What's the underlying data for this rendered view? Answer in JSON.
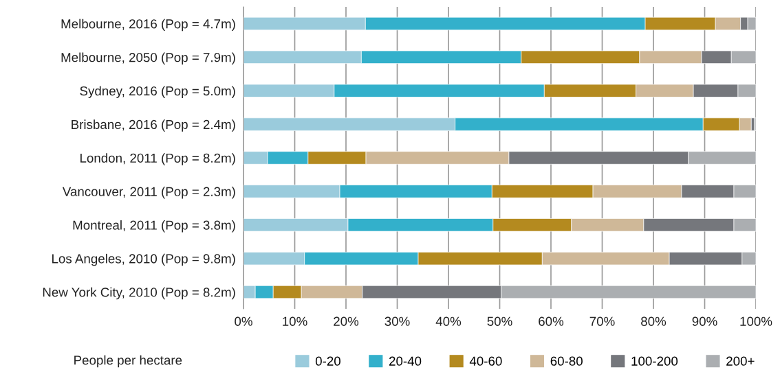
{
  "chart_data": {
    "type": "bar",
    "orientation": "horizontal",
    "stacked": true,
    "categories": [
      "Melbourne, 2016 (Pop = 4.7m)",
      "Melbourne, 2050 (Pop = 7.9m)",
      "Sydney, 2016 (Pop = 5.0m)",
      "Brisbane, 2016 (Pop = 2.4m)",
      "London, 2011 (Pop = 8.2m)",
      "Vancouver, 2011 (Pop = 2.3m)",
      "Montreal, 2011 (Pop = 3.8m)",
      "Los Angeles, 2010 (Pop = 9.8m)",
      "New York City, 2010 (Pop = 8.2m)"
    ],
    "series": [
      {
        "name": "0-20",
        "color": "#9acbdc",
        "values": [
          23.8,
          23.0,
          17.7,
          41.3,
          4.7,
          18.8,
          20.4,
          11.9,
          2.3
        ]
      },
      {
        "name": "20-40",
        "color": "#33b0cb",
        "values": [
          54.6,
          31.2,
          41.0,
          48.4,
          7.9,
          29.7,
          28.3,
          22.2,
          3.5
        ]
      },
      {
        "name": "40-60",
        "color": "#b48a1f",
        "values": [
          13.7,
          23.1,
          17.9,
          7.1,
          11.3,
          19.7,
          15.3,
          24.2,
          5.5
        ]
      },
      {
        "name": "60-80",
        "color": "#cfb898",
        "values": [
          4.9,
          12.1,
          11.2,
          2.3,
          27.9,
          17.3,
          14.1,
          24.8,
          11.9
        ]
      },
      {
        "name": "100-200",
        "color": "#75777c",
        "values": [
          1.4,
          5.8,
          8.7,
          0.6,
          35.0,
          10.2,
          17.6,
          14.2,
          27.1
        ]
      },
      {
        "name": "200+",
        "color": "#abaeb1",
        "values": [
          1.6,
          4.8,
          3.5,
          0.3,
          13.2,
          4.3,
          4.3,
          2.7,
          49.7
        ]
      }
    ],
    "xlim": [
      0,
      100
    ],
    "xticks": [
      {
        "value": 0,
        "label": "0%"
      },
      {
        "value": 10,
        "label": "10%"
      },
      {
        "value": 20,
        "label": "20%"
      },
      {
        "value": 30,
        "label": "30%"
      },
      {
        "value": 40,
        "label": "40%"
      },
      {
        "value": 50,
        "label": "50%"
      },
      {
        "value": 60,
        "label": "60%"
      },
      {
        "value": 70,
        "label": "70%"
      },
      {
        "value": 80,
        "label": "80%"
      },
      {
        "value": 90,
        "label": "90%"
      },
      {
        "value": 100,
        "label": "100%"
      }
    ],
    "grid": "x",
    "legend": "bottom",
    "legend_title": "People per hectare"
  }
}
